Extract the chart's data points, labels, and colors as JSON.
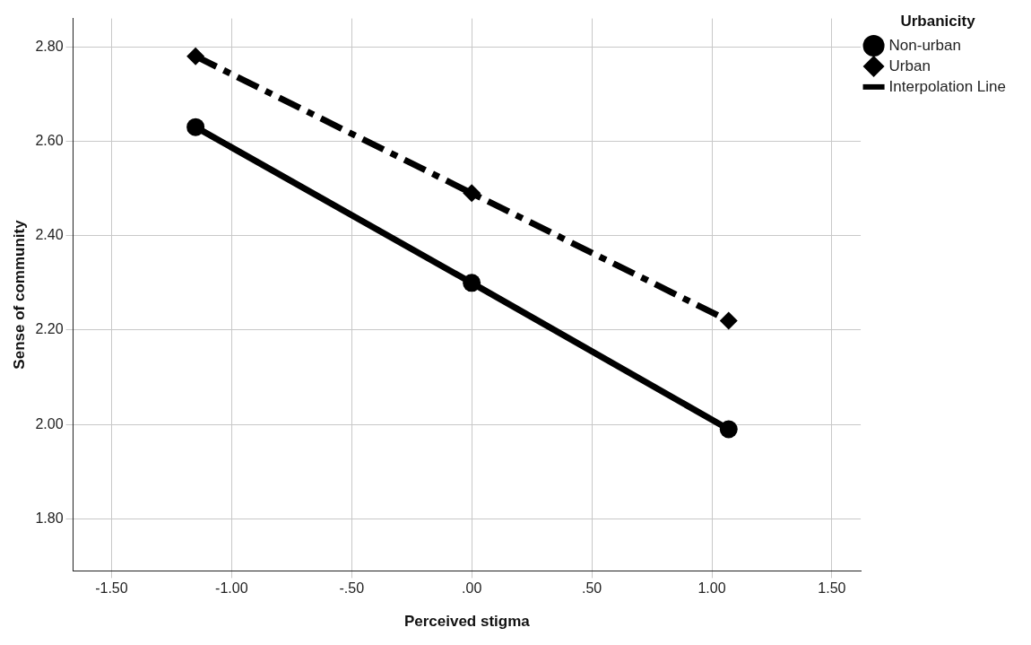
{
  "chart_data": {
    "type": "line",
    "xlabel": "Perceived stigma",
    "ylabel": "Sense of community",
    "legend_title": "Urbanicity",
    "x": [
      -1.15,
      0.0,
      1.07
    ],
    "series": [
      {
        "name": "Non-urban",
        "color": "#000000",
        "values": [
          2.63,
          2.3,
          1.99
        ],
        "marker": "circle",
        "line_style": "solid"
      },
      {
        "name": "Urban",
        "color": "#000000",
        "values": [
          2.78,
          2.49,
          2.22
        ],
        "marker": "diamond",
        "line_style": "dashdot"
      }
    ],
    "xlim": [
      -1.66,
      1.62
    ],
    "ylim": [
      1.69,
      2.86
    ],
    "xticks": [
      {
        "value": -1.5,
        "label": "-1.50"
      },
      {
        "value": -1,
        "label": "-1.00"
      },
      {
        "value": -0.5,
        "label": "-.50"
      },
      {
        "value": 0,
        "label": ".00"
      },
      {
        "value": 0.5,
        "label": ".50"
      },
      {
        "value": 1,
        "label": "1.00"
      },
      {
        "value": 1.5,
        "label": "1.50"
      }
    ],
    "yticks": [
      {
        "value": 1.8,
        "label": "1.80"
      },
      {
        "value": 2.0,
        "label": "2.00"
      },
      {
        "value": 2.2,
        "label": "2.20"
      },
      {
        "value": 2.4,
        "label": "2.40"
      },
      {
        "value": 2.6,
        "label": "2.60"
      },
      {
        "value": 2.8,
        "label": "2.80"
      }
    ],
    "grid": true,
    "legend": "right",
    "annotations": [
      "Interpolation Line"
    ]
  }
}
